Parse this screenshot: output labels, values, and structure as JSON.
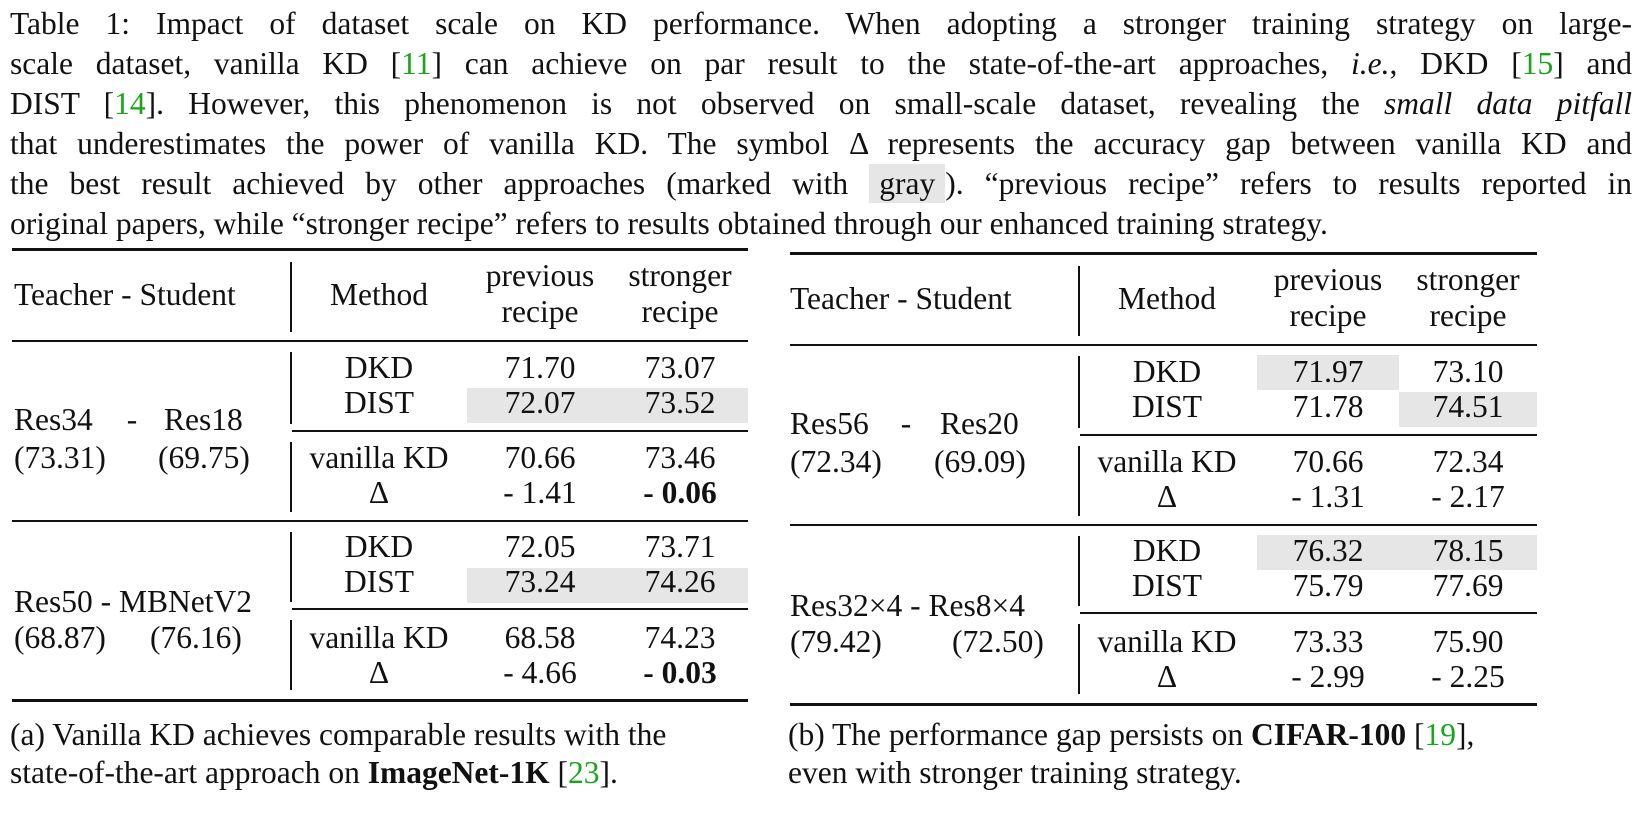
{
  "caption": {
    "l1": "Table 1: Impact of dataset scale on KD performance. When adopting a stronger training strategy on large-",
    "l2a": "scale dataset, vanilla KD [",
    "l2c": "11",
    "l2b": "] can achieve on par result to the state-of-the-art approaches, ",
    "l2ie": "i.e.",
    "l2d": ", DKD [",
    "l2e": "15",
    "l2f": "] and",
    "l3a": "DIST [",
    "l3b": "14",
    "l3c": "]. However, this phenomenon is not observed on small-scale dataset, revealing the ",
    "l3em": "small data pitfall",
    "l4": "that underestimates the power of vanilla KD. The symbol Δ represents the accuracy gap between vanilla KD and",
    "l5a": "the best result achieved by other approaches (marked with ",
    "l5chip": "gray",
    "l5b": "). “previous recipe” refers to results reported in",
    "l6": "original papers, while “stronger recipe” refers to results obtained through our enhanced training strategy."
  },
  "table_a": {
    "header": {
      "ts": "Teacher - Student",
      "method": "Method",
      "prev1": "previous",
      "prev2": "recipe",
      "str1": "stronger",
      "str2": "recipe"
    },
    "g1": {
      "teacher": "Res34",
      "dash": "-",
      "student": "Res18",
      "t_acc": "(73.31)",
      "s_acc": "(69.75)",
      "r1": {
        "m": "DKD",
        "p": "71.70",
        "s": "73.07"
      },
      "r2": {
        "m": "DIST",
        "p": "72.07",
        "s": "73.52"
      },
      "r3": {
        "m": "vanilla KD",
        "p": "70.66",
        "s": "73.46"
      },
      "r4": {
        "m": "Δ",
        "p": "- 1.41",
        "s": "- 0.06"
      }
    },
    "g2": {
      "ts": "Res50 - MBNetV2",
      "t_acc": "(68.87)",
      "s_acc": "(76.16)",
      "r1": {
        "m": "DKD",
        "p": "72.05",
        "s": "73.71"
      },
      "r2": {
        "m": "DIST",
        "p": "73.24",
        "s": "74.26"
      },
      "r3": {
        "m": "vanilla KD",
        "p": "68.58",
        "s": "74.23"
      },
      "r4": {
        "m": "Δ",
        "p": "- 4.66",
        "s": "- 0.03"
      }
    },
    "subcaption": {
      "l1": "(a) Vanilla KD achieves comparable results with the",
      "l2a": "state-of-the-art approach on ",
      "l2b": "ImageNet-1K",
      "l2c": " [",
      "l2d": "23",
      "l2e": "]."
    }
  },
  "table_b": {
    "header": {
      "ts": "Teacher - Student",
      "method": "Method",
      "prev1": "previous",
      "prev2": "recipe",
      "str1": "stronger",
      "str2": "recipe"
    },
    "g1": {
      "teacher": "Res56",
      "dash": "-",
      "student": "Res20",
      "t_acc": "(72.34)",
      "s_acc": "(69.09)",
      "r1": {
        "m": "DKD",
        "p": "71.97",
        "s": "73.10"
      },
      "r2": {
        "m": "DIST",
        "p": "71.78",
        "s": "74.51"
      },
      "r3": {
        "m": "vanilla KD",
        "p": "70.66",
        "s": "72.34"
      },
      "r4": {
        "m": "Δ",
        "p": "- 1.31",
        "s": "- 2.17"
      }
    },
    "g2": {
      "ts": "Res32×4 - Res8×4",
      "t_acc": "(79.42)",
      "s_acc": "(72.50)",
      "r1": {
        "m": "DKD",
        "p": "76.32",
        "s": "78.15"
      },
      "r2": {
        "m": "DIST",
        "p": "75.79",
        "s": "77.69"
      },
      "r3": {
        "m": "vanilla KD",
        "p": "73.33",
        "s": "75.90"
      },
      "r4": {
        "m": "Δ",
        "p": "- 2.99",
        "s": "- 2.25"
      }
    },
    "subcaption": {
      "l1a": "(b) The performance gap persists on ",
      "l1b": "CIFAR-100",
      "l1c": " [",
      "l1d": "19",
      "l1e": "],",
      "l2": "even with stronger training strategy."
    }
  }
}
